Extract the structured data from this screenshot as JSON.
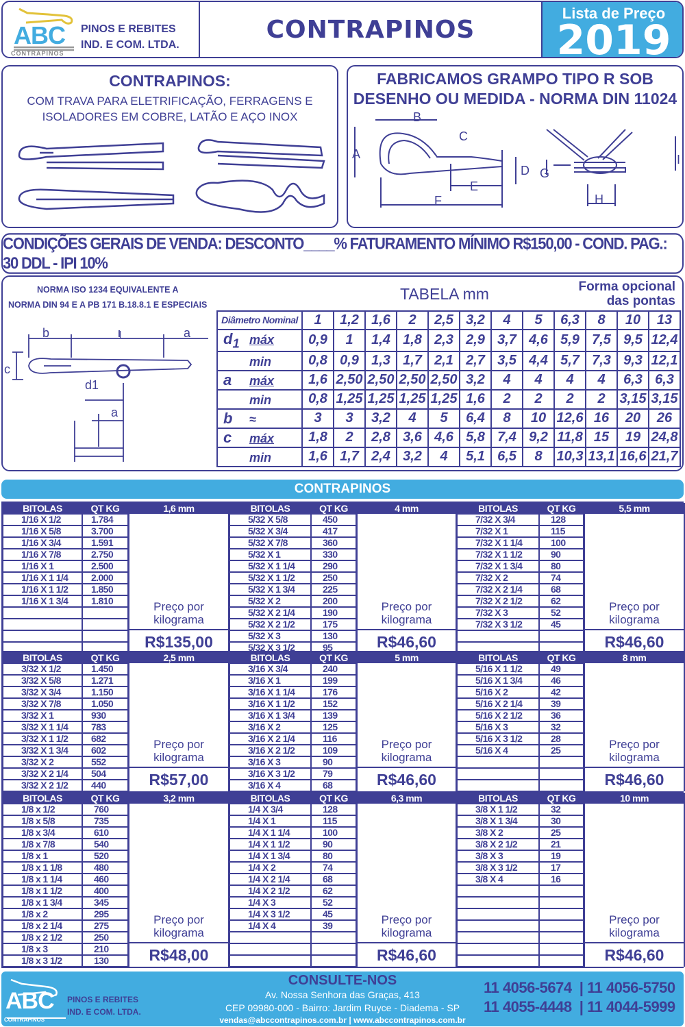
{
  "header": {
    "logo_text": "ABC",
    "logo_sub": "CONTRAPINOS",
    "company_line1": "PINOS E REBITES",
    "company_line2": "IND. E COM. LTDA.",
    "title": "CONTRAPINOS",
    "price_list_label": "Lista de Preço",
    "year": "2019"
  },
  "intro": {
    "title": "CONTRAPINOS:",
    "desc_line1": "COM TRAVA PARA ELETRIFICAÇÃO, FERRAGENS E",
    "desc_line2": "ISOLADORES EM COBRE, LATÃO E AÇO INOX"
  },
  "grampo": {
    "title_line1": "FABRICAMOS GRAMPO TIPO R SOB",
    "title_line2": "DESENHO OU MEDIDA - NORMA DIN 11024",
    "labels": [
      "A",
      "B",
      "C",
      "D",
      "E",
      "F",
      "G",
      "H",
      "I"
    ]
  },
  "conditions": "CONDIÇÕES GERAIS DE VENDA: DESCONTO____% FATURAMENTO MÍNIMO R$150,00 - COND. PAG.: 30 DDL - IPI 10%",
  "norma": {
    "line1": "NORMA ISO 1234 EQUIVALENTE A",
    "line2": "NORMA DIN 94 E A PB 171 B.18.8.1 E ESPECIAIS",
    "diagram_labels": [
      "b",
      "l",
      "a",
      "c",
      "d1",
      "a"
    ],
    "table_title": "TABELA mm",
    "optional_line1": "Forma opcional",
    "optional_line2": "das pontas"
  },
  "dimension_table": {
    "header_label": "Diâmetro Nominal",
    "nominal": [
      "1",
      "1,2",
      "1,6",
      "2",
      "2,5",
      "3,2",
      "4",
      "5",
      "6,3",
      "8",
      "10",
      "13"
    ],
    "rows": [
      {
        "symbol": "d",
        "subscript": "1",
        "qualifier": "máx",
        "values": [
          "0,9",
          "1",
          "1,4",
          "1,8",
          "2,3",
          "2,9",
          "3,7",
          "4,6",
          "5,9",
          "7,5",
          "9,5",
          "12,4"
        ]
      },
      {
        "symbol": "",
        "qualifier": "min",
        "values": [
          "0,8",
          "0,9",
          "1,3",
          "1,7",
          "2,1",
          "2,7",
          "3,5",
          "4,4",
          "5,7",
          "7,3",
          "9,3",
          "12,1"
        ]
      },
      {
        "symbol": "a",
        "qualifier": "máx",
        "values": [
          "1,6",
          "2,50",
          "2,50",
          "2,50",
          "2,50",
          "3,2",
          "4",
          "4",
          "4",
          "4",
          "6,3",
          "6,3"
        ]
      },
      {
        "symbol": "",
        "qualifier": "min",
        "values": [
          "0,8",
          "1,25",
          "1,25",
          "1,25",
          "1,25",
          "1,6",
          "2",
          "2",
          "2",
          "2",
          "3,15",
          "3,15"
        ]
      },
      {
        "symbol": "b",
        "qualifier": "≈",
        "values": [
          "3",
          "3",
          "3,2",
          "4",
          "5",
          "6,4",
          "8",
          "10",
          "12,6",
          "16",
          "20",
          "26"
        ]
      },
      {
        "symbol": "c",
        "qualifier": "máx",
        "values": [
          "1,8",
          "2",
          "2,8",
          "3,6",
          "4,6",
          "5,8",
          "7,4",
          "9,2",
          "11,8",
          "15",
          "19",
          "24,8"
        ]
      },
      {
        "symbol": "",
        "qualifier": "min",
        "values": [
          "1,6",
          "1,7",
          "2,4",
          "3,2",
          "4",
          "5,1",
          "6,5",
          "8",
          "10,3",
          "13,1",
          "16,6",
          "21,7"
        ]
      }
    ]
  },
  "price_section_title": "CONTRAPINOS",
  "col_headers": {
    "bitolas": "BITOLAS",
    "qt": "QT KG",
    "price_label": "Preço por kilograma"
  },
  "bands": [
    {
      "rows": 12,
      "groups": [
        {
          "size": "1,6 mm",
          "price": "R$135,00",
          "items": [
            [
              "1/16 X 1/2",
              "1.784"
            ],
            [
              "1/16 X 5/8",
              "3.700"
            ],
            [
              "1/16 X 3/4",
              "1.591"
            ],
            [
              "1/16 X 7/8",
              "2.750"
            ],
            [
              "1/16 X 1",
              "2.500"
            ],
            [
              "1/16 X 1 1/4",
              "2.000"
            ],
            [
              "1/16 X 1 1/2",
              "1.850"
            ],
            [
              "1/16 X 1 3/4",
              "1.810"
            ]
          ]
        },
        {
          "size": "4 mm",
          "price": "R$46,60",
          "items": [
            [
              "5/32 X 5/8",
              "450"
            ],
            [
              "5/32 X 3/4",
              "417"
            ],
            [
              "5/32 X 7/8",
              "360"
            ],
            [
              "5/32 X 1",
              "330"
            ],
            [
              "5/32 X 1 1/4",
              "290"
            ],
            [
              "5/32 X 1 1/2",
              "250"
            ],
            [
              "5/32 X 1 3/4",
              "225"
            ],
            [
              "5/32 X 2",
              "200"
            ],
            [
              "5/32 X 2 1/4",
              "190"
            ],
            [
              "5/32 X 2 1/2",
              "175"
            ],
            [
              "5/32 X 3",
              "130"
            ],
            [
              "5/32 X 3 1/2",
              "95"
            ]
          ]
        },
        {
          "size": "5,5 mm",
          "price": "R$46,60",
          "items": [
            [
              "7/32 X 3/4",
              "128"
            ],
            [
              "7/32 X 1",
              "115"
            ],
            [
              "7/32 X 1 1/4",
              "100"
            ],
            [
              "7/32 X 1 1/2",
              "90"
            ],
            [
              "7/32 X 1 3/4",
              "80"
            ],
            [
              "7/32 X 2",
              "74"
            ],
            [
              "7/32 X 2 1/4",
              "68"
            ],
            [
              "7/32 X 2 1/2",
              "62"
            ],
            [
              "7/32 X 3",
              "52"
            ],
            [
              "7/32 X 3 1/2",
              "45"
            ]
          ]
        }
      ]
    },
    {
      "rows": 11,
      "groups": [
        {
          "size": "2,5 mm",
          "price": "R$57,00",
          "items": [
            [
              "3/32 X 1/2",
              "1.450"
            ],
            [
              "3/32 X 5/8",
              "1.271"
            ],
            [
              "3/32 X 3/4",
              "1.150"
            ],
            [
              "3/32 X 7/8",
              "1.050"
            ],
            [
              "3/32 X 1",
              "930"
            ],
            [
              "3/32 X 1 1/4",
              "783"
            ],
            [
              "3/32 X 1 1/2",
              "682"
            ],
            [
              "3/32 X 1 3/4",
              "602"
            ],
            [
              "3/32 X 2",
              "552"
            ],
            [
              "3/32 X 2 1/4",
              "504"
            ],
            [
              "3/32 X 2 1/2",
              "440"
            ]
          ]
        },
        {
          "size": "5 mm",
          "price": "R$46,60",
          "items": [
            [
              "3/16 X 3/4",
              "240"
            ],
            [
              "3/16 X 1",
              "199"
            ],
            [
              "3/16 X 1 1/4",
              "176"
            ],
            [
              "3/16 X 1 1/2",
              "152"
            ],
            [
              "3/16 X 1 3/4",
              "139"
            ],
            [
              "3/16 X 2",
              "125"
            ],
            [
              "3/16 X 2 1/4",
              "116"
            ],
            [
              "3/16 X 2 1/2",
              "109"
            ],
            [
              "3/16 X 3",
              "90"
            ],
            [
              "3/16 X 3 1/2",
              "79"
            ],
            [
              "3/16 X 4",
              "68"
            ]
          ]
        },
        {
          "size": "8 mm",
          "price": "R$46,60",
          "items": [
            [
              "5/16 X 1 1/2",
              "49"
            ],
            [
              "5/16 X 1 3/4",
              "46"
            ],
            [
              "5/16 X 2",
              "42"
            ],
            [
              "5/16 X 2 1/4",
              "39"
            ],
            [
              "5/16 X 2 1/2",
              "36"
            ],
            [
              "5/16 X 3",
              "32"
            ],
            [
              "5/16 X 3 1/2",
              "28"
            ],
            [
              "5/16 X 4",
              "25"
            ]
          ]
        }
      ]
    },
    {
      "rows": 14,
      "groups": [
        {
          "size": "3,2 mm",
          "price": "R$48,00",
          "items": [
            [
              "1/8 x 1/2",
              "760"
            ],
            [
              "1/8 x 5/8",
              "735"
            ],
            [
              "1/8 x 3/4",
              "610"
            ],
            [
              "1/8 x 7/8",
              "540"
            ],
            [
              "1/8 x 1",
              "520"
            ],
            [
              "1/8 x 1 1/8",
              "480"
            ],
            [
              "1/8 x 1 1/4",
              "460"
            ],
            [
              "1/8 x 1 1/2",
              "400"
            ],
            [
              "1/8 x 1 3/4",
              "345"
            ],
            [
              "1/8 x 2",
              "295"
            ],
            [
              "1/8 x 2 1/4",
              "275"
            ],
            [
              "1/8 x 2 1/2",
              "250"
            ],
            [
              "1/8 x 3",
              "210"
            ],
            [
              "1/8 x 3 1/2",
              "130"
            ]
          ]
        },
        {
          "size": "6,3 mm",
          "price": "R$46,60",
          "items": [
            [
              "1/4 X 3/4",
              "128"
            ],
            [
              "1/4 X 1",
              "115"
            ],
            [
              "1/4 X 1 1/4",
              "100"
            ],
            [
              "1/4 X 1 1/2",
              "90"
            ],
            [
              "1/4 X 1 3/4",
              "80"
            ],
            [
              "1/4 X 2",
              "74"
            ],
            [
              "1/4 X 2 1/4",
              "68"
            ],
            [
              "1/4 X 2 1/2",
              "62"
            ],
            [
              "1/4 X 3",
              "52"
            ],
            [
              "1/4 X 3 1/2",
              "45"
            ],
            [
              "1/4 X 4",
              "39"
            ]
          ]
        },
        {
          "size": "10 mm",
          "price": "R$46,60",
          "items": [
            [
              "3/8 X 1 1/2",
              "32"
            ],
            [
              "3/8 X 1 3/4",
              "30"
            ],
            [
              "3/8 X 2",
              "25"
            ],
            [
              "3/8 X 2 1/2",
              "21"
            ],
            [
              "3/8 X 3",
              "19"
            ],
            [
              "3/8 X 3 1/2",
              "17"
            ],
            [
              "3/8 X 4",
              "16"
            ]
          ]
        }
      ]
    }
  ],
  "footer": {
    "logo_text": "ABC",
    "logo_sub": "CONTRAPINOS",
    "company_line1": "PINOS E REBITES",
    "company_line2": "IND. E COM. LTDA.",
    "heading": "CONSULTE-NOS",
    "address": "Av. Nossa Senhora das Graças, 413",
    "cep": "CEP 09980-000 - Bairro: Jardim Ruyce - Diadema - SP",
    "email": "vendas@abccontrapinos.com.br",
    "website": "www.abccontrapinos.com.br",
    "phones": [
      "11 4056-5674",
      "11 4056-5750",
      "11 4055-4448",
      "11 4044-5999"
    ]
  },
  "colors": {
    "navy": "#3f3f95",
    "light_blue": "#42ace0",
    "logo_yellow": "#e2c23a"
  }
}
